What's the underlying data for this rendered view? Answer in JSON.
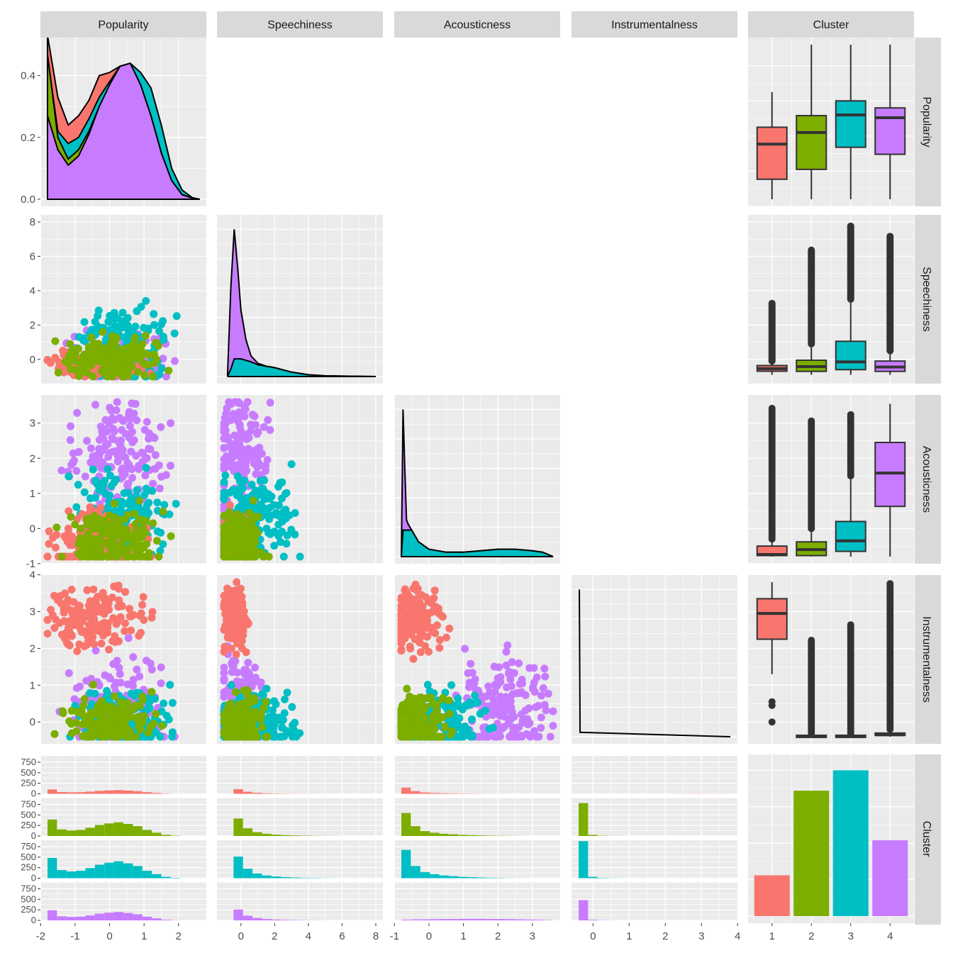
{
  "chart_data": {
    "type": "scatter",
    "title": "",
    "variables": [
      "Popularity",
      "Speechiness",
      "Acousticness",
      "Instrumentalness",
      "Cluster"
    ],
    "clusters": [
      "1",
      "2",
      "3",
      "4"
    ],
    "colors": {
      "1": "#F8766D",
      "2": "#7CAE00",
      "3": "#00BFC4",
      "4": "#C77CFF"
    },
    "axes": {
      "Popularity": {
        "range": [
          -1.8,
          2.6
        ],
        "ticks": [
          -2,
          -1,
          0,
          1,
          2
        ],
        "tick_labels": [
          "-2",
          "-1",
          "0",
          "1",
          "2"
        ]
      },
      "Speechiness": {
        "range": [
          -1,
          8
        ],
        "ticks": [
          0,
          2,
          4,
          6,
          8
        ],
        "tick_labels": [
          "0",
          "2",
          "4",
          "6",
          "8"
        ]
      },
      "Acousticness": {
        "range": [
          -0.8,
          3.6
        ],
        "ticks": [
          -1,
          0,
          1,
          2,
          3
        ],
        "tick_labels": [
          "-1",
          "0",
          "1",
          "2",
          "3"
        ]
      },
      "Instrumentalness": {
        "range": [
          -0.4,
          3.8
        ],
        "ticks": [
          0,
          1,
          2,
          3,
          4
        ],
        "tick_labels": [
          "0",
          "1",
          "2",
          "3",
          "4"
        ]
      }
    },
    "density_popularity": {
      "y_ticks": [
        0.0,
        0.2,
        0.4
      ],
      "y_tick_labels": [
        "0.0",
        "0.2",
        "0.4"
      ],
      "ylim": [
        0,
        0.5
      ],
      "x": [
        -1.8,
        -1.5,
        -1.2,
        -0.9,
        -0.6,
        -0.3,
        0.0,
        0.3,
        0.6,
        0.9,
        1.2,
        1.5,
        1.8,
        2.1,
        2.4,
        2.6
      ],
      "series": [
        {
          "name": "1",
          "values": [
            0.53,
            0.33,
            0.24,
            0.27,
            0.32,
            0.4,
            0.41,
            0.43,
            0.42,
            0.35,
            0.25,
            0.15,
            0.07,
            0.02,
            0.005,
            0.0
          ]
        },
        {
          "name": "3",
          "values": [
            0.46,
            0.22,
            0.18,
            0.2,
            0.26,
            0.33,
            0.38,
            0.43,
            0.44,
            0.41,
            0.36,
            0.24,
            0.1,
            0.03,
            0.005,
            0.0
          ]
        },
        {
          "name": "2",
          "values": [
            0.47,
            0.2,
            0.13,
            0.16,
            0.22,
            0.3,
            0.36,
            0.42,
            0.44,
            0.37,
            0.27,
            0.15,
            0.06,
            0.015,
            0.004,
            0.0
          ]
        },
        {
          "name": "4",
          "values": [
            0.27,
            0.16,
            0.11,
            0.14,
            0.21,
            0.3,
            0.37,
            0.43,
            0.44,
            0.37,
            0.27,
            0.15,
            0.06,
            0.015,
            0.004,
            0.0
          ]
        }
      ]
    },
    "density_speechiness": {
      "x": [
        -0.8,
        -0.6,
        -0.4,
        -0.2,
        0.0,
        0.3,
        0.6,
        1.0,
        1.5,
        2.0,
        3.0,
        4.0,
        5.0,
        6.0,
        8.0
      ],
      "overall": [
        0.0,
        0.6,
        1.0,
        0.75,
        0.45,
        0.25,
        0.14,
        0.09,
        0.07,
        0.06,
        0.03,
        0.012,
        0.005,
        0.003,
        0.0
      ],
      "cluster3": [
        0.0,
        0.05,
        0.12,
        0.12,
        0.12,
        0.11,
        0.1,
        0.08,
        0.07,
        0.06,
        0.03,
        0.012,
        0.005,
        0.003,
        0.0
      ]
    },
    "density_acousticness": {
      "x": [
        -0.8,
        -0.75,
        -0.7,
        -0.65,
        -0.6,
        -0.5,
        -0.3,
        0.0,
        0.5,
        1.0,
        1.5,
        2.0,
        2.5,
        3.0,
        3.3,
        3.6
      ],
      "overall": [
        0.0,
        1.0,
        0.6,
        0.25,
        0.22,
        0.18,
        0.1,
        0.05,
        0.03,
        0.03,
        0.04,
        0.05,
        0.05,
        0.04,
        0.03,
        0.0
      ],
      "cluster4": [
        0.0,
        0.0,
        0.0,
        0.0,
        0.01,
        0.01,
        0.015,
        0.02,
        0.025,
        0.03,
        0.04,
        0.05,
        0.05,
        0.04,
        0.03,
        0.0
      ]
    },
    "boxplots": {
      "Popularity": [
        {
          "cluster": "1",
          "min": -1.8,
          "q1": -1.23,
          "median": -0.23,
          "q3": 0.25,
          "max": 1.25
        },
        {
          "cluster": "2",
          "min": -1.8,
          "q1": -0.95,
          "median": 0.1,
          "q3": 0.58,
          "max": 2.6
        },
        {
          "cluster": "3",
          "min": -1.8,
          "q1": -0.32,
          "median": 0.6,
          "q3": 1.0,
          "max": 2.6
        },
        {
          "cluster": "4",
          "min": -1.8,
          "q1": -0.52,
          "median": 0.52,
          "q3": 0.8,
          "max": 2.6
        }
      ],
      "Speechiness": [
        {
          "cluster": "1",
          "min": -0.9,
          "q1": -0.69,
          "median": -0.54,
          "q3": -0.36,
          "max": -0.1,
          "outliers_to": 3.3
        },
        {
          "cluster": "2",
          "min": -0.9,
          "q1": -0.7,
          "median": -0.42,
          "q3": -0.05,
          "max": 0.9,
          "outliers_to": 6.4
        },
        {
          "cluster": "3",
          "min": -0.9,
          "q1": -0.6,
          "median": -0.15,
          "q3": 1.05,
          "max": 3.5,
          "outliers_to": 7.8
        },
        {
          "cluster": "4",
          "min": -0.9,
          "q1": -0.7,
          "median": -0.45,
          "q3": -0.1,
          "max": 0.5,
          "outliers_to": 7.2
        }
      ],
      "Acousticness": [
        {
          "cluster": "1",
          "min": -0.8,
          "q1": -0.77,
          "median": -0.74,
          "q3": -0.5,
          "max": -0.3,
          "outliers_to": 3.45
        },
        {
          "cluster": "2",
          "min": -0.8,
          "q1": -0.77,
          "median": -0.6,
          "q3": -0.38,
          "max": 0.0,
          "outliers_to": 3.1
        },
        {
          "cluster": "3",
          "min": -0.8,
          "q1": -0.65,
          "median": -0.35,
          "q3": 0.2,
          "max": 1.5,
          "outliers_to": 3.3
        },
        {
          "cluster": "4",
          "min": -0.8,
          "q1": 0.63,
          "median": 1.58,
          "q3": 2.45,
          "max": 3.55
        }
      ],
      "Instrumentalness": [
        {
          "cluster": "1",
          "min": 1.3,
          "q1": 2.25,
          "median": 2.95,
          "q3": 3.35,
          "max": 3.8,
          "outliers_low": [
            0.0,
            0.45,
            0.55
          ]
        },
        {
          "cluster": "2",
          "min": -0.4,
          "q1": -0.38,
          "median": -0.38,
          "q3": -0.36,
          "max": -0.3,
          "outliers_to": 2.25
        },
        {
          "cluster": "3",
          "min": -0.4,
          "q1": -0.38,
          "median": -0.38,
          "q3": -0.36,
          "max": -0.3,
          "outliers_to": 2.7
        },
        {
          "cluster": "4",
          "min": -0.4,
          "q1": -0.36,
          "median": -0.35,
          "q3": -0.3,
          "max": -0.2,
          "outliers_to": 3.8
        }
      ]
    },
    "cluster_counts": {
      "categories": [
        "1",
        "2",
        "3",
        "4"
      ],
      "values": [
        280,
        860,
        1000,
        520
      ]
    },
    "histogram_y_ticks": [
      0,
      250,
      500,
      750
    ],
    "histogram_y_tick_labels": [
      "0",
      "250",
      "500",
      "750"
    ]
  }
}
